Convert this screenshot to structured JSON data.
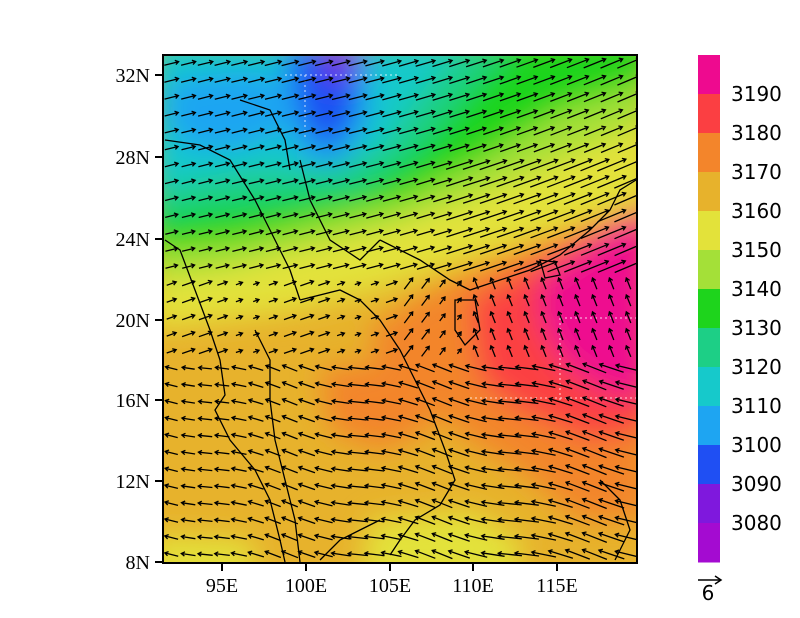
{
  "map": {
    "x_ticks": [
      "95E",
      "100E",
      "105E",
      "110E",
      "115E"
    ],
    "y_ticks": [
      "32N",
      "28N",
      "24N",
      "20N",
      "16N",
      "12N",
      "8N"
    ]
  },
  "colorbar": {
    "labels": [
      "3190",
      "3180",
      "3170",
      "3160",
      "3150",
      "3140",
      "3130",
      "3120",
      "3110",
      "3100",
      "3090",
      "3080"
    ],
    "colors": [
      "#ee0a8f",
      "#fb3f42",
      "#f3852b",
      "#e7b22c",
      "#e3e23a",
      "#a4e038",
      "#1ed41c",
      "#1dcf86",
      "#16c9cb",
      "#1ea5f2",
      "#1f4ff3",
      "#7f18dd",
      "#a40bd1"
    ]
  },
  "reference_vector": {
    "label": "6"
  },
  "chart_data": {
    "type": "heatmap",
    "variable_levels": [
      3080,
      3090,
      3100,
      3110,
      3120,
      3130,
      3140,
      3150,
      3160,
      3170,
      3180,
      3190
    ],
    "x_range": [
      "91E",
      "119E"
    ],
    "y_range": [
      "8N",
      "33N"
    ],
    "overlay": "wind vectors, reference length 6"
  }
}
